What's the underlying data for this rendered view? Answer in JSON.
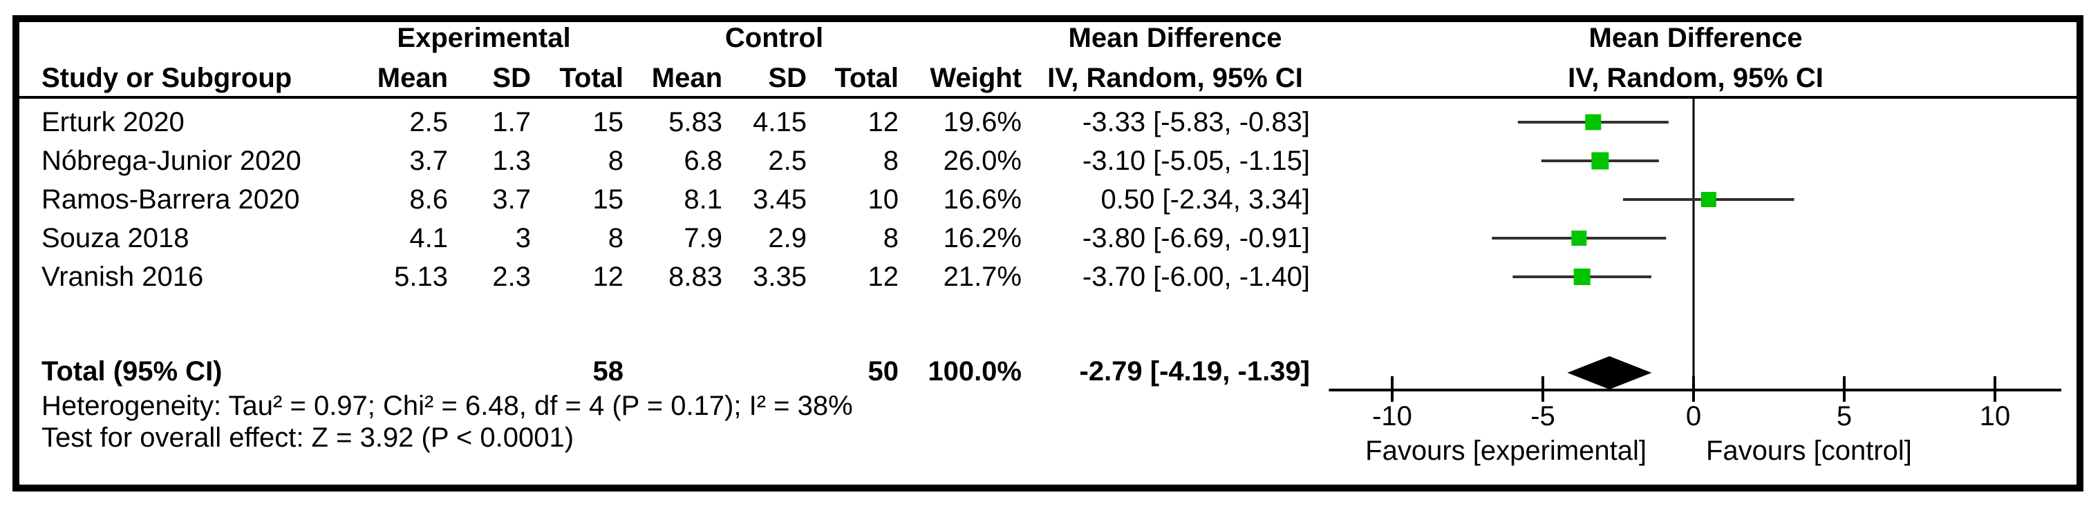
{
  "table": {
    "group_headers": {
      "experimental": "Experimental",
      "control": "Control",
      "md_text": "Mean Difference",
      "md_graph": "Mean Difference"
    },
    "col_headers": {
      "study": "Study or Subgroup",
      "e_mean": "Mean",
      "e_sd": "SD",
      "e_total": "Total",
      "c_mean": "Mean",
      "c_sd": "SD",
      "c_total": "Total",
      "weight": "Weight",
      "ci": "IV, Random, 95% CI",
      "ci_graph": "IV, Random, 95% CI"
    },
    "rows": [
      {
        "study": "Erturk 2020",
        "e_mean": "2.5",
        "e_sd": "1.7",
        "e_total": "15",
        "c_mean": "5.83",
        "c_sd": "4.15",
        "c_total": "12",
        "weight": "19.6%",
        "ci": "-3.33 [-5.83, -0.83]"
      },
      {
        "study": "Nóbrega-Junior 2020",
        "e_mean": "3.7",
        "e_sd": "1.3",
        "e_total": "8",
        "c_mean": "6.8",
        "c_sd": "2.5",
        "c_total": "8",
        "weight": "26.0%",
        "ci": "-3.10 [-5.05, -1.15]"
      },
      {
        "study": "Ramos-Barrera 2020",
        "e_mean": "8.6",
        "e_sd": "3.7",
        "e_total": "15",
        "c_mean": "8.1",
        "c_sd": "3.45",
        "c_total": "10",
        "weight": "16.6%",
        "ci": "0.50 [-2.34, 3.34]"
      },
      {
        "study": "Souza 2018",
        "e_mean": "4.1",
        "e_sd": "3",
        "e_total": "8",
        "c_mean": "7.9",
        "c_sd": "2.9",
        "c_total": "8",
        "weight": "16.2%",
        "ci": "-3.80 [-6.69, -0.91]"
      },
      {
        "study": "Vranish 2016",
        "e_mean": "5.13",
        "e_sd": "2.3",
        "e_total": "12",
        "c_mean": "8.83",
        "c_sd": "3.35",
        "c_total": "12",
        "weight": "21.7%",
        "ci": "-3.70 [-6.00, -1.40]"
      }
    ],
    "total": {
      "label": "Total (95% CI)",
      "e_total": "58",
      "c_total": "50",
      "weight": "100.0%",
      "ci": "-2.79 [-4.19, -1.39]"
    },
    "heterogeneity": "Heterogeneity: Tau² = 0.97; Chi² = 6.48, df = 4 (P = 0.17); I² = 38%",
    "overall_effect": "Test for overall effect: Z = 3.92 (P < 0.0001)"
  },
  "chart_data": {
    "type": "forest",
    "title": "Mean Difference",
    "method_label": "IV, Random, 95% CI",
    "studies": [
      {
        "name": "Erturk 2020",
        "md": -3.33,
        "ci_low": -5.83,
        "ci_high": -0.83,
        "weight_pct": 19.6
      },
      {
        "name": "Nóbrega-Junior 2020",
        "md": -3.1,
        "ci_low": -5.05,
        "ci_high": -1.15,
        "weight_pct": 26.0
      },
      {
        "name": "Ramos-Barrera 2020",
        "md": 0.5,
        "ci_low": -2.34,
        "ci_high": 3.34,
        "weight_pct": 16.6
      },
      {
        "name": "Souza 2018",
        "md": -3.8,
        "ci_low": -6.69,
        "ci_high": -0.91,
        "weight_pct": 16.2
      },
      {
        "name": "Vranish 2016",
        "md": -3.7,
        "ci_low": -6.0,
        "ci_high": -1.4,
        "weight_pct": 21.7
      }
    ],
    "total": {
      "md": -2.79,
      "ci_low": -4.19,
      "ci_high": -1.39
    },
    "axis": {
      "ticks": [
        -10,
        -5,
        0,
        5,
        10
      ],
      "min": -12.1,
      "max": 12.2,
      "zero_line": 0
    },
    "favours_left": "Favours [experimental]",
    "favours_right": "Favours [control]",
    "marker_color": "#00C400",
    "ci_line_color": "#303030",
    "diamond_color": "#000000"
  }
}
